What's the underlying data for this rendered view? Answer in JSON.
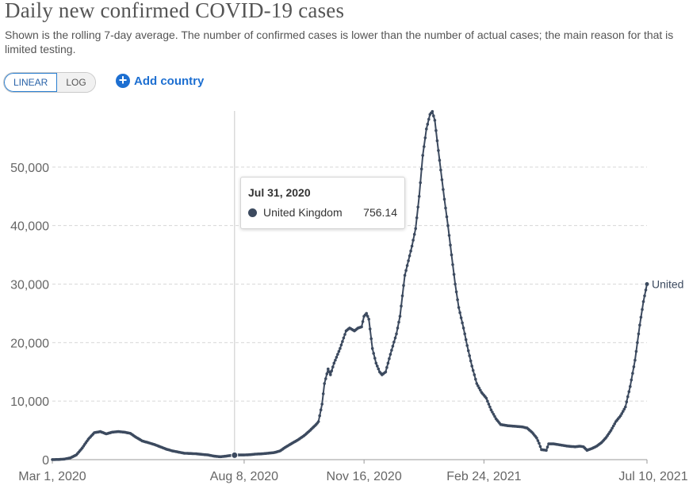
{
  "header": {
    "title": "Daily new confirmed COVID-19 cases",
    "subtitle": "Shown is the rolling 7-day average. The number of confirmed cases is lower than the number of actual cases; the main reason for that is limited testing."
  },
  "controls": {
    "linear_label": "LINEAR",
    "log_label": "LOG",
    "add_country_label": "Add country",
    "accent_color": "#1d6fd1"
  },
  "tooltip": {
    "date": "Jul 31, 2020",
    "entity": "United Kingdom",
    "value": "756.14"
  },
  "chart_data": {
    "type": "line",
    "title": "Daily new confirmed COVID-19 cases",
    "xlabel": "",
    "ylabel": "",
    "ylim": [
      0,
      60000
    ],
    "yticks": [
      0,
      10000,
      20000,
      30000,
      40000,
      50000
    ],
    "ytick_labels": [
      "0",
      "10,000",
      "20,000",
      "30,000",
      "40,000",
      "50,000"
    ],
    "xtick_days": [
      0,
      160,
      260,
      360,
      496
    ],
    "xtick_labels": [
      "Mar 1, 2020",
      "Aug 8, 2020",
      "Nov 16, 2020",
      "Feb 24, 2021",
      "Jul 10, 2021"
    ],
    "hover_day": 152,
    "line_color": "#3c4a5f",
    "series": [
      {
        "name": "United Kingdom",
        "end_label": "United",
        "points": [
          [
            0,
            10
          ],
          [
            5,
            30
          ],
          [
            10,
            100
          ],
          [
            15,
            300
          ],
          [
            20,
            800
          ],
          [
            25,
            2000
          ],
          [
            30,
            3500
          ],
          [
            35,
            4600
          ],
          [
            40,
            4800
          ],
          [
            45,
            4400
          ],
          [
            50,
            4700
          ],
          [
            55,
            4800
          ],
          [
            60,
            4700
          ],
          [
            65,
            4500
          ],
          [
            70,
            3800
          ],
          [
            75,
            3200
          ],
          [
            80,
            2900
          ],
          [
            85,
            2600
          ],
          [
            90,
            2200
          ],
          [
            95,
            1800
          ],
          [
            100,
            1500
          ],
          [
            105,
            1300
          ],
          [
            110,
            1100
          ],
          [
            115,
            1050
          ],
          [
            120,
            1000
          ],
          [
            125,
            900
          ],
          [
            130,
            800
          ],
          [
            135,
            600
          ],
          [
            140,
            500
          ],
          [
            145,
            600
          ],
          [
            150,
            750
          ],
          [
            152,
            756
          ],
          [
            155,
            800
          ],
          [
            160,
            800
          ],
          [
            165,
            850
          ],
          [
            170,
            950
          ],
          [
            175,
            1000
          ],
          [
            180,
            1100
          ],
          [
            185,
            1200
          ],
          [
            190,
            1500
          ],
          [
            195,
            2200
          ],
          [
            200,
            2800
          ],
          [
            205,
            3400
          ],
          [
            210,
            4100
          ],
          [
            215,
            5000
          ],
          [
            220,
            6000
          ],
          [
            222,
            6500
          ],
          [
            225,
            9500
          ],
          [
            227,
            13000
          ],
          [
            230,
            15500
          ],
          [
            232,
            14500
          ],
          [
            235,
            16500
          ],
          [
            240,
            19000
          ],
          [
            245,
            22000
          ],
          [
            248,
            22500
          ],
          [
            252,
            22000
          ],
          [
            255,
            22500
          ],
          [
            258,
            22700
          ],
          [
            260,
            24500
          ],
          [
            262,
            25000
          ],
          [
            264,
            24000
          ],
          [
            267,
            19000
          ],
          [
            270,
            16500
          ],
          [
            273,
            15000
          ],
          [
            275,
            14500
          ],
          [
            278,
            15000
          ],
          [
            282,
            18000
          ],
          [
            287,
            21500
          ],
          [
            290,
            24500
          ],
          [
            294,
            31500
          ],
          [
            297,
            34000
          ],
          [
            300,
            36500
          ],
          [
            303,
            39500
          ],
          [
            306,
            45000
          ],
          [
            309,
            52000
          ],
          [
            312,
            56500
          ],
          [
            315,
            59000
          ],
          [
            317,
            59500
          ],
          [
            319,
            58000
          ],
          [
            321,
            54500
          ],
          [
            324,
            49500
          ],
          [
            327,
            44500
          ],
          [
            330,
            40000
          ],
          [
            333,
            35000
          ],
          [
            336,
            30000
          ],
          [
            339,
            26000
          ],
          [
            343,
            22500
          ],
          [
            346,
            19500
          ],
          [
            350,
            16000
          ],
          [
            354,
            13000
          ],
          [
            358,
            11500
          ],
          [
            362,
            10500
          ],
          [
            366,
            8500
          ],
          [
            370,
            7000
          ],
          [
            374,
            6000
          ],
          [
            380,
            5800
          ],
          [
            386,
            5700
          ],
          [
            392,
            5600
          ],
          [
            396,
            5400
          ],
          [
            400,
            4700
          ],
          [
            404,
            3700
          ],
          [
            406,
            2800
          ],
          [
            408,
            1700
          ],
          [
            412,
            1600
          ],
          [
            414,
            2700
          ],
          [
            418,
            2700
          ],
          [
            424,
            2500
          ],
          [
            430,
            2300
          ],
          [
            436,
            2200
          ],
          [
            440,
            2300
          ],
          [
            443,
            2200
          ],
          [
            446,
            1600
          ],
          [
            450,
            1900
          ],
          [
            454,
            2300
          ],
          [
            458,
            2900
          ],
          [
            462,
            3800
          ],
          [
            466,
            5000
          ],
          [
            470,
            6500
          ],
          [
            474,
            7500
          ],
          [
            478,
            9000
          ],
          [
            482,
            12500
          ],
          [
            486,
            17000
          ],
          [
            490,
            23000
          ],
          [
            493,
            27000
          ],
          [
            496,
            30000
          ]
        ]
      }
    ]
  }
}
